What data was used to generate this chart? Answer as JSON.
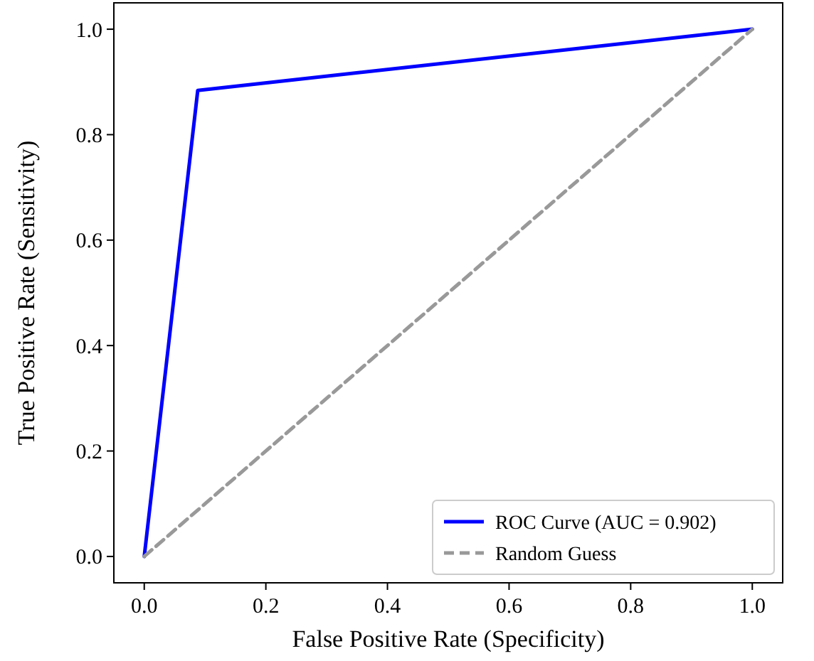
{
  "chart_data": {
    "type": "line",
    "xlabel": "False Positive Rate (Specificity)",
    "ylabel": "True Positive Rate (Sensitivity)",
    "series": [
      {
        "name": "ROC Curve (AUC = 0.902)",
        "color": "#0000ff",
        "x": [
          0,
          0.088,
          1
        ],
        "values": [
          0,
          0.884,
          1
        ],
        "line_style": "solid"
      },
      {
        "name": "Random Guess",
        "color": "#999999",
        "x": [
          0,
          1
        ],
        "values": [
          0,
          1
        ],
        "line_style": "dashed"
      }
    ],
    "xlim": [
      -0.05,
      1.05
    ],
    "ylim": [
      -0.05,
      1.05
    ],
    "xticks": [
      {
        "value": 0,
        "label": "0.0"
      },
      {
        "value": 0.2,
        "label": "0.2"
      },
      {
        "value": 0.4,
        "label": "0.4"
      },
      {
        "value": 0.6,
        "label": "0.6"
      },
      {
        "value": 0.8,
        "label": "0.8"
      },
      {
        "value": 1,
        "label": "1.0"
      }
    ],
    "yticks": [
      {
        "value": 0,
        "label": "0.0"
      },
      {
        "value": 0.2,
        "label": "0.2"
      },
      {
        "value": 0.4,
        "label": "0.4"
      },
      {
        "value": 0.6,
        "label": "0.6"
      },
      {
        "value": 0.8,
        "label": "0.8"
      },
      {
        "value": 1,
        "label": "1.0"
      }
    ],
    "grid": false,
    "legend": "bottom right",
    "marker": "none"
  }
}
